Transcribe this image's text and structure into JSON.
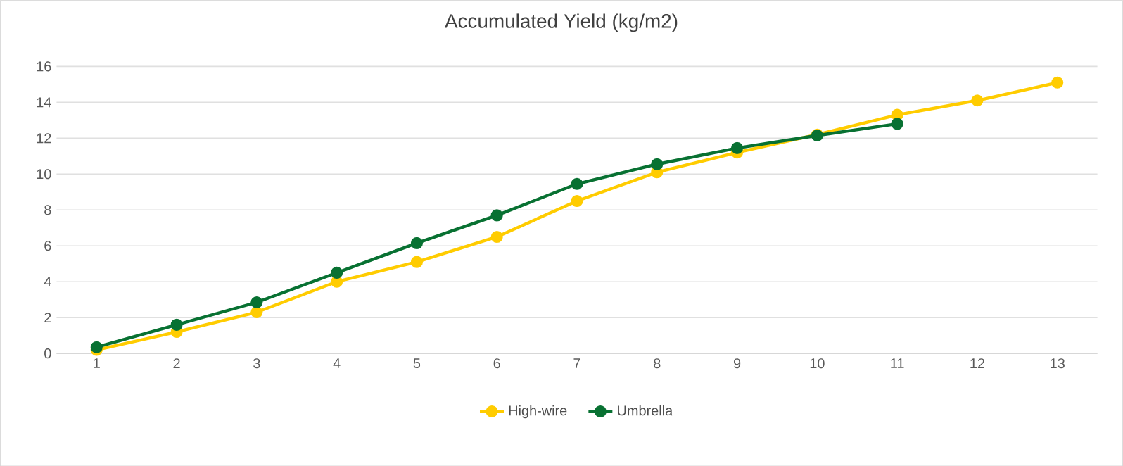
{
  "chart_data": {
    "type": "line",
    "title": "Accumulated Yield (kg/m2)",
    "categories": [
      "1",
      "2",
      "3",
      "4",
      "5",
      "6",
      "7",
      "8",
      "9",
      "10",
      "11",
      "12",
      "13"
    ],
    "series": [
      {
        "name": "High-wire",
        "color": "#ffcc00",
        "values": [
          0.2,
          1.2,
          2.3,
          4.0,
          5.1,
          6.5,
          8.5,
          10.1,
          11.2,
          12.2,
          13.3,
          14.1,
          15.1
        ]
      },
      {
        "name": "Umbrella",
        "color": "#087132",
        "values": [
          0.35,
          1.6,
          2.85,
          4.5,
          6.15,
          7.7,
          9.45,
          10.55,
          11.45,
          12.15,
          12.8,
          null,
          null
        ]
      }
    ],
    "ylim": [
      0,
      16
    ],
    "yticks": [
      0,
      2,
      4,
      6,
      8,
      10,
      12,
      14,
      16
    ],
    "grid": "y",
    "legend": "bottom",
    "marker": "circle",
    "line_style": "solid"
  }
}
